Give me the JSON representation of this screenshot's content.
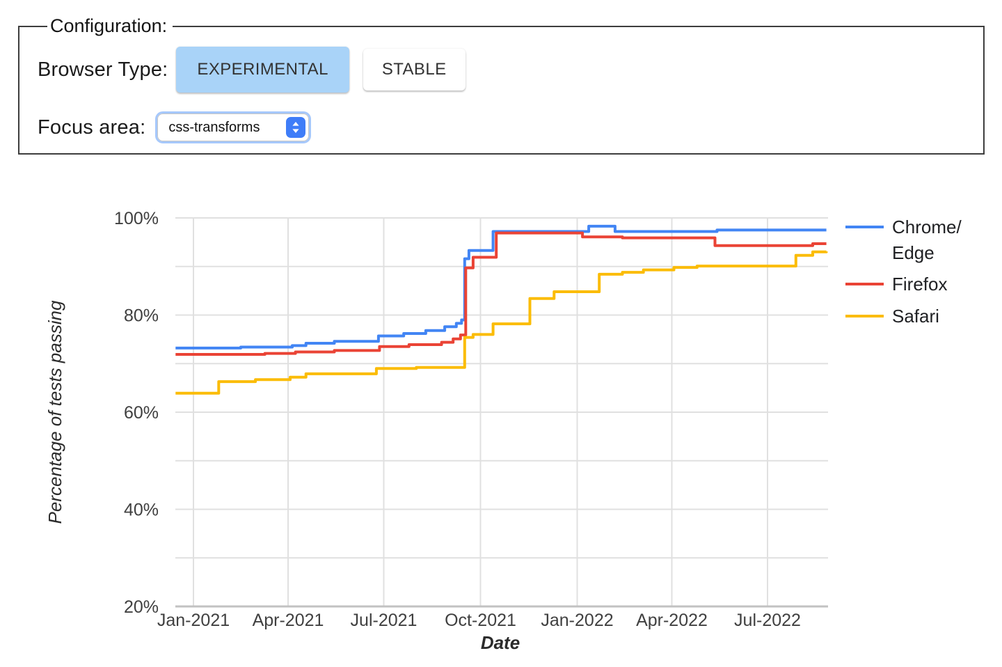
{
  "config_panel": {
    "legend_label": "Configuration:",
    "browser_type_label": "Browser Type:",
    "browser_type_options": [
      {
        "label": "EXPERIMENTAL",
        "selected": true
      },
      {
        "label": "STABLE",
        "selected": false
      }
    ],
    "focus_area_label": "Focus area:",
    "focus_area_value": "css-transforms",
    "stepper_icon": "up-down-chevrons"
  },
  "colors": {
    "selected_button_bg": "#a9d3f8",
    "select_focus_ring": "#a6c8fb",
    "select_stepper_bg": "#3f7df8",
    "gridline": "#e0e0e0",
    "axis_line": "#c2c2c2",
    "tick_text": "#404040",
    "chart_blue": "#4285F4",
    "chart_red": "#EA4335",
    "chart_yellow": "#FBBC04"
  },
  "chart_data": {
    "type": "line",
    "step": true,
    "title": "",
    "xlabel": "Date",
    "ylabel": "Percentage of tests passing",
    "ylim": [
      20,
      100
    ],
    "grid": true,
    "legend_position": "right",
    "line_width": 4,
    "x_ticks": [
      {
        "label": "Jan-2021",
        "date": "2021-01-01"
      },
      {
        "label": "Apr-2021",
        "date": "2021-04-01"
      },
      {
        "label": "Jul-2021",
        "date": "2021-07-01"
      },
      {
        "label": "Oct-2021",
        "date": "2021-10-01"
      },
      {
        "label": "Jan-2022",
        "date": "2022-01-01"
      },
      {
        "label": "Apr-2022",
        "date": "2022-04-01"
      },
      {
        "label": "Jul-2022",
        "date": "2022-07-01"
      }
    ],
    "y_ticks": [
      {
        "label": "100%",
        "value": 100
      },
      {
        "label": "80%",
        "value": 80
      },
      {
        "label": "60%",
        "value": 60
      },
      {
        "label": "40%",
        "value": 40
      },
      {
        "label": "20%",
        "value": 20
      }
    ],
    "series": [
      {
        "name": "Chrome/Edge",
        "legend_lines": [
          "Chrome/",
          "Edge"
        ],
        "color": "#4285F4",
        "points": [
          [
            "2020-12-15",
            73.2
          ],
          [
            "2021-02-15",
            73.4
          ],
          [
            "2021-04-05",
            73.7
          ],
          [
            "2021-04-18",
            74.2
          ],
          [
            "2021-05-15",
            74.6
          ],
          [
            "2021-06-26",
            75.7
          ],
          [
            "2021-07-20",
            76.2
          ],
          [
            "2021-08-10",
            76.8
          ],
          [
            "2021-08-28",
            77.6
          ],
          [
            "2021-09-08",
            78.3
          ],
          [
            "2021-09-13",
            79.0
          ],
          [
            "2021-09-16",
            91.6
          ],
          [
            "2021-09-20",
            93.3
          ],
          [
            "2021-10-13",
            97.2
          ],
          [
            "2022-01-12",
            98.3
          ],
          [
            "2022-02-06",
            97.2
          ],
          [
            "2022-05-14",
            97.5
          ],
          [
            "2022-08-26",
            97.5
          ]
        ]
      },
      {
        "name": "Firefox",
        "legend_lines": [
          "Firefox"
        ],
        "color": "#EA4335",
        "points": [
          [
            "2020-12-15",
            71.9
          ],
          [
            "2021-03-10",
            72.1
          ],
          [
            "2021-04-08",
            72.4
          ],
          [
            "2021-05-15",
            72.7
          ],
          [
            "2021-06-27",
            73.5
          ],
          [
            "2021-07-25",
            73.9
          ],
          [
            "2021-08-25",
            74.4
          ],
          [
            "2021-09-05",
            75.1
          ],
          [
            "2021-09-12",
            75.9
          ],
          [
            "2021-09-17",
            89.7
          ],
          [
            "2021-09-24",
            91.9
          ],
          [
            "2021-10-16",
            96.9
          ],
          [
            "2022-01-06",
            96.1
          ],
          [
            "2022-02-13",
            95.9
          ],
          [
            "2022-05-12",
            94.3
          ],
          [
            "2022-08-13",
            94.7
          ],
          [
            "2022-08-26",
            94.7
          ]
        ]
      },
      {
        "name": "Safari",
        "legend_lines": [
          "Safari"
        ],
        "color": "#FBBC04",
        "points": [
          [
            "2020-12-15",
            63.9
          ],
          [
            "2021-01-25",
            66.3
          ],
          [
            "2021-03-01",
            66.7
          ],
          [
            "2021-04-03",
            67.2
          ],
          [
            "2021-04-18",
            67.9
          ],
          [
            "2021-06-24",
            69.0
          ],
          [
            "2021-08-01",
            69.2
          ],
          [
            "2021-09-16",
            75.4
          ],
          [
            "2021-09-24",
            76.0
          ],
          [
            "2021-10-13",
            78.2
          ],
          [
            "2021-11-17",
            83.4
          ],
          [
            "2021-12-10",
            84.8
          ],
          [
            "2022-01-22",
            88.4
          ],
          [
            "2022-02-13",
            88.8
          ],
          [
            "2022-03-05",
            89.3
          ],
          [
            "2022-04-03",
            89.8
          ],
          [
            "2022-04-25",
            90.1
          ],
          [
            "2022-07-28",
            92.3
          ],
          [
            "2022-08-13",
            93.0
          ],
          [
            "2022-08-26",
            93.1
          ]
        ]
      }
    ]
  }
}
